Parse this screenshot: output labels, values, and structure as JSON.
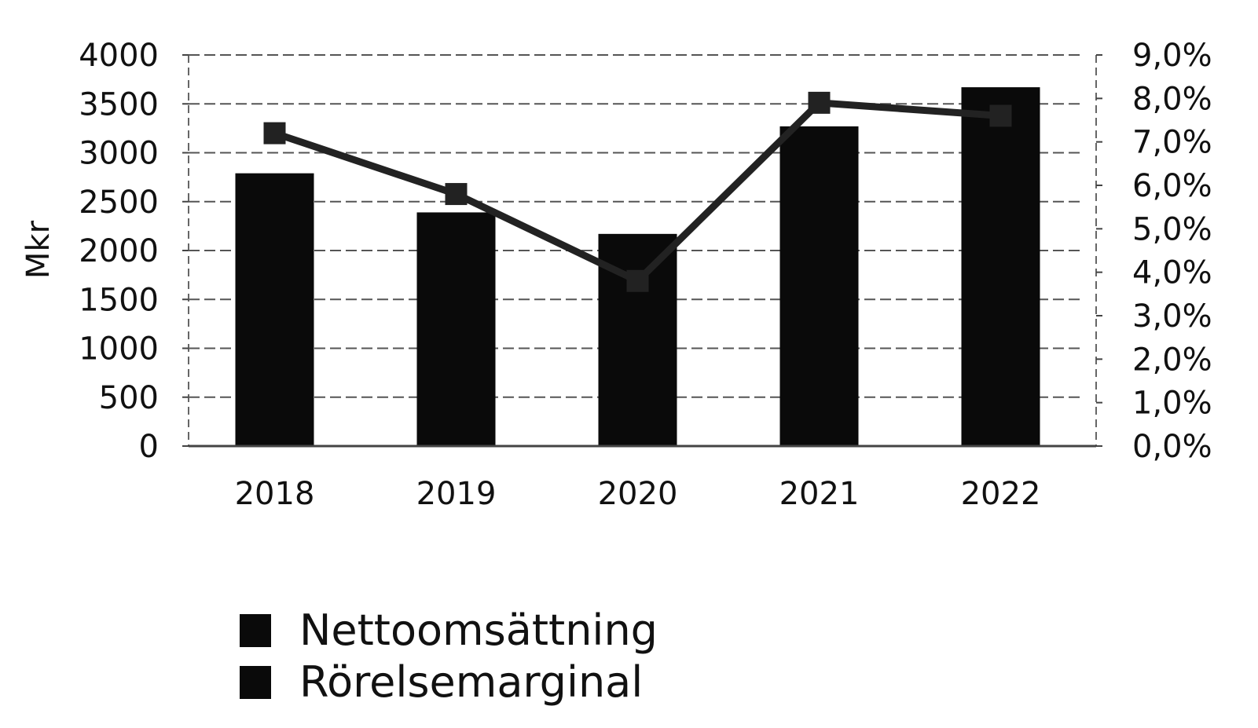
{
  "chart_data": {
    "type": "bar",
    "categories": [
      "2018",
      "2019",
      "2020",
      "2021",
      "2022"
    ],
    "series": [
      {
        "name": "Nettoomsättning",
        "kind": "bar",
        "axis": "left",
        "values": [
          2790,
          2390,
          2170,
          3270,
          3670
        ],
        "color": "#0a0a0a"
      },
      {
        "name": "Rörelsemarginal",
        "kind": "line",
        "axis": "right",
        "values": [
          7.2,
          5.8,
          3.8,
          7.9,
          7.6
        ],
        "color": "#222222"
      }
    ],
    "ylabel": "Mkr",
    "ylim": [
      0,
      4000
    ],
    "yticks": [
      "0",
      "500",
      "1000",
      "1500",
      "2000",
      "2500",
      "3000",
      "3500",
      "4000"
    ],
    "y2lim": [
      0,
      9
    ],
    "y2ticks": [
      "0,0%",
      "1,0%",
      "2,0%",
      "3,0%",
      "4,0%",
      "5,0%",
      "6,0%",
      "7,0%",
      "8,0%",
      "9,0%"
    ],
    "grid": true,
    "legend_position": "bottom-left"
  },
  "legend": {
    "items": [
      {
        "label": "Nettoomsättning",
        "color": "#0a0a0a"
      },
      {
        "label": "Rörelsemarginal",
        "color": "#0a0a0a"
      }
    ]
  }
}
